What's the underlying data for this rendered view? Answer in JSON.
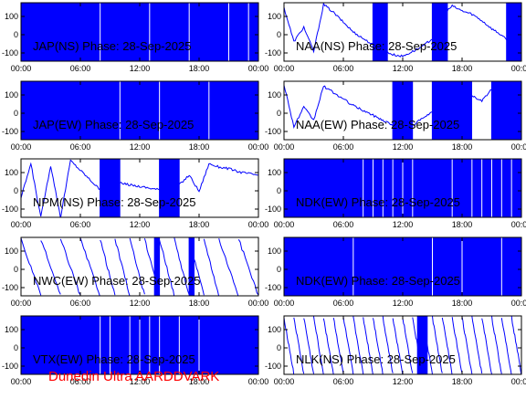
{
  "footer": "Dunedin Ultra AARDDVARK",
  "series_color": "#0000ff",
  "chart_data": [
    {
      "type": "line",
      "title": "JAP(NS) Phase: 28-Sep-2025",
      "xlim": [
        0,
        24
      ],
      "ylim": [
        -180,
        180
      ],
      "xticks": [
        "00:00",
        "06:00",
        "12:00",
        "18:00",
        "00:00"
      ],
      "yticks": [
        "100",
        "0",
        "-100"
      ],
      "style": "saturated",
      "values": [
        -180,
        -150,
        -100,
        -40,
        20,
        80,
        140,
        180,
        120,
        60,
        0,
        -60,
        -120,
        -170,
        -120,
        -60,
        0,
        60,
        120,
        170,
        100,
        40,
        -20,
        -80,
        -140
      ],
      "gaps": [
        8,
        13,
        17,
        21,
        23
      ]
    },
    {
      "type": "line",
      "title": "NAA(NS) Phase: 28-Sep-2025",
      "xlim": [
        0,
        24
      ],
      "ylim": [
        -180,
        180
      ],
      "xticks": [
        "00:00",
        "06:00",
        "12:00",
        "18:00",
        "00:00"
      ],
      "yticks": [
        "100",
        "0",
        "-100"
      ],
      "style": "line",
      "values": [
        150,
        -60,
        30,
        -120,
        170,
        120,
        60,
        0,
        -40,
        -80,
        -110,
        -140,
        -150,
        -120,
        -90,
        -40,
        100,
        160,
        130,
        110,
        70,
        20,
        -20,
        -80,
        90
      ],
      "bursts": [
        [
          9,
          10.5
        ],
        [
          15,
          16.5
        ],
        [
          22.5,
          24
        ]
      ]
    },
    {
      "type": "line",
      "title": "JAP(EW) Phase: 28-Sep-2025",
      "xlim": [
        0,
        24
      ],
      "ylim": [
        -180,
        180
      ],
      "xticks": [
        "00:00",
        "06:00",
        "12:00",
        "18:00",
        "00:00"
      ],
      "yticks": [
        "100",
        "0",
        "-100"
      ],
      "style": "saturated",
      "values": [
        -180,
        -130,
        -70,
        -10,
        50,
        110,
        170,
        130,
        70,
        10,
        -50,
        -110,
        -170,
        -120,
        -60,
        0,
        60,
        120,
        180,
        120,
        60,
        0,
        -60,
        -120,
        -180
      ],
      "gaps": [
        10,
        14,
        19
      ]
    },
    {
      "type": "line",
      "title": "NAA(EW) Phase: 28-Sep-2025",
      "xlim": [
        0,
        24
      ],
      "ylim": [
        -180,
        180
      ],
      "xticks": [
        "00:00",
        "06:00",
        "12:00",
        "18:00",
        "00:00"
      ],
      "yticks": [
        "100",
        "0",
        "-100"
      ],
      "style": "line",
      "values": [
        160,
        -100,
        20,
        -60,
        150,
        110,
        70,
        30,
        0,
        -30,
        -60,
        -90,
        -110,
        -90,
        -50,
        -10,
        100,
        40,
        -20,
        90,
        60,
        130,
        100,
        60,
        110
      ],
      "bursts": [
        [
          11,
          13
        ],
        [
          15,
          19
        ],
        [
          21,
          24
        ]
      ]
    },
    {
      "type": "line",
      "title": "NPM(NS) Phase: 28-Sep-2025",
      "xlim": [
        0,
        24
      ],
      "ylim": [
        -180,
        180
      ],
      "xticks": [
        "00:00",
        "06:00",
        "12:00",
        "18:00",
        "00:00"
      ],
      "yticks": [
        "100",
        "0",
        "-100"
      ],
      "style": "line",
      "values": [
        -60,
        150,
        -180,
        140,
        -180,
        170,
        110,
        50,
        -10,
        40,
        30,
        20,
        10,
        0,
        -10,
        -20,
        20,
        80,
        -20,
        150,
        130,
        120,
        100,
        90,
        80
      ],
      "bursts": [
        [
          8,
          10
        ],
        [
          14,
          16
        ]
      ]
    },
    {
      "type": "line",
      "title": "NDK(EW) Phase: 28-Sep-2025",
      "xlim": [
        0,
        24
      ],
      "ylim": [
        -180,
        180
      ],
      "xticks": [
        "00:00",
        "06:00",
        "12:00",
        "18:00",
        "00:00"
      ],
      "yticks": [
        "100",
        "0",
        "-100"
      ],
      "style": "saturated",
      "values": [
        -180,
        -120,
        -60,
        0,
        60,
        120,
        180,
        120,
        60,
        0,
        -60,
        -120,
        -180,
        -120,
        -60,
        0,
        60,
        120,
        180,
        120,
        60,
        0,
        -60,
        -120,
        -180
      ],
      "gaps": [
        8,
        9,
        10,
        11,
        12,
        13,
        17,
        19,
        20,
        21,
        22,
        23
      ]
    },
    {
      "type": "line",
      "title": "NWC(EW) Phase: 28-Sep-2025",
      "xlim": [
        0,
        24
      ],
      "ylim": [
        -180,
        180
      ],
      "xticks": [
        "00:00",
        "06:00",
        "12:00",
        "18:00",
        "00:00"
      ],
      "yticks": [
        "100",
        "0",
        "-100"
      ],
      "style": "sawtooth",
      "periods": [
        0,
        2,
        4,
        6,
        8,
        9.5,
        11,
        12.5,
        14,
        15.5,
        17,
        18.5,
        20,
        22,
        24
      ],
      "bursts": [
        [
          13.5,
          14
        ],
        [
          17,
          17.5
        ]
      ]
    },
    {
      "type": "line",
      "title": "NDK(EW) Phase: 28-Sep-2025",
      "xlim": [
        0,
        24
      ],
      "ylim": [
        -180,
        180
      ],
      "xticks": [
        "00:00",
        "06:00",
        "12:00",
        "18:00",
        "00:00"
      ],
      "yticks": [
        "100",
        "0",
        "-100"
      ],
      "style": "saturated",
      "values": [
        -180,
        -120,
        -60,
        0,
        60,
        120,
        180,
        120,
        60,
        0,
        -60,
        -120,
        -180,
        -120,
        -60,
        0,
        60,
        120,
        180,
        120,
        60,
        0,
        -60,
        -120,
        -180
      ],
      "gaps": [
        7,
        15,
        18,
        22
      ]
    },
    {
      "type": "line",
      "title": "VTX(EW) Phase: 28-Sep-2025",
      "xlim": [
        0,
        24
      ],
      "ylim": [
        -180,
        180
      ],
      "xticks": [
        "00:00",
        "06:00",
        "12:00",
        "18:00",
        "00:00"
      ],
      "yticks": [
        "100",
        "0",
        "-100"
      ],
      "style": "saturated",
      "values": [
        -180,
        -120,
        -60,
        0,
        60,
        120,
        180,
        120,
        60,
        0,
        -60,
        -120,
        -180,
        -120,
        -60,
        0,
        60,
        120,
        180,
        120,
        60,
        0,
        -60,
        -120,
        -180
      ],
      "gaps": [
        8,
        9,
        11,
        12,
        13,
        14,
        16,
        18
      ]
    },
    {
      "type": "line",
      "title": "NLK(NS) Phase: 28-Sep-2025",
      "xlim": [
        0,
        24
      ],
      "ylim": [
        -180,
        180
      ],
      "xticks": [
        "00:00",
        "06:00",
        "12:00",
        "18:00",
        "00:00"
      ],
      "yticks": [
        "100",
        "0",
        "-100"
      ],
      "style": "sawtooth",
      "periods": [
        0,
        1,
        2,
        3,
        4,
        5,
        6,
        7,
        8,
        9,
        10,
        11,
        12,
        13,
        14,
        15,
        16,
        17,
        18,
        19,
        20,
        21,
        22,
        23,
        24
      ],
      "bursts": [
        [
          13.5,
          14.5
        ]
      ]
    }
  ]
}
